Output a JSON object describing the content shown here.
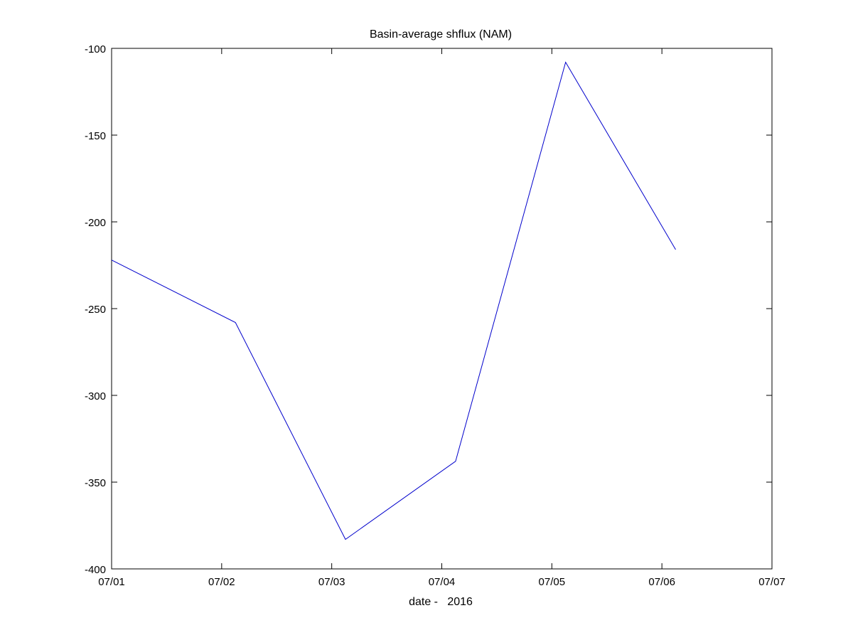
{
  "chart_data": {
    "type": "line",
    "title": "Basin-average shflux (NAM)",
    "xlabel": "date -   2016",
    "ylabel": "",
    "x_ticks": [
      "07/01",
      "07/02",
      "07/03",
      "07/04",
      "07/05",
      "07/06",
      "07/07"
    ],
    "y_ticks": [
      -100,
      -150,
      -200,
      -250,
      -300,
      -350,
      -400
    ],
    "xlim": [
      "07/01 00:00",
      "07/07 00:00"
    ],
    "ylim": [
      -400,
      -100
    ],
    "grid": false,
    "series": [
      {
        "color": "#0000cc",
        "x": [
          "07/01 00:00",
          "07/02 03:00",
          "07/03 03:00",
          "07/04 03:00",
          "07/05 03:00",
          "07/06 03:00"
        ],
        "values": [
          -222,
          -258,
          -383,
          -338,
          -108,
          -216
        ]
      }
    ]
  }
}
